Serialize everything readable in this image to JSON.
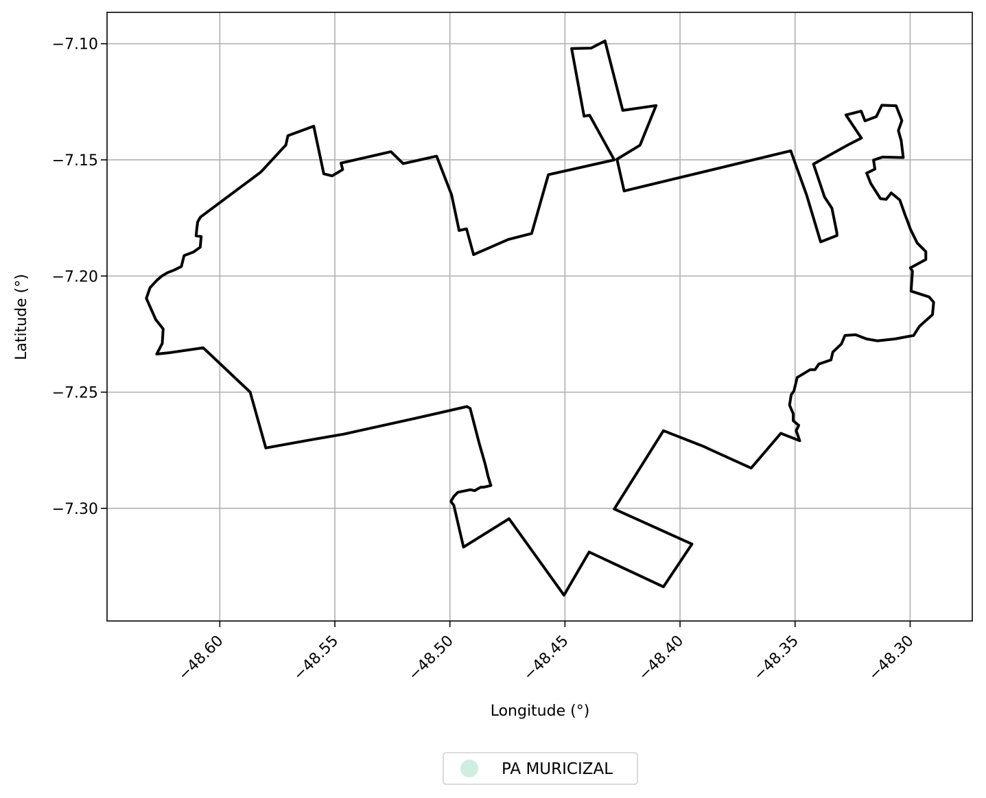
{
  "chart_data": {
    "type": "map",
    "xlabel": "Longitude (°)",
    "ylabel": "Latitude (°)",
    "xlim": [
      -48.649,
      -48.273
    ],
    "ylim": [
      -7.3485,
      -7.0865
    ],
    "xticks": [
      -48.6,
      -48.55,
      -48.5,
      -48.45,
      -48.4,
      -48.35,
      -48.3
    ],
    "xtick_labels": [
      "−48.60",
      "−48.55",
      "−48.50",
      "−48.45",
      "−48.40",
      "−48.35",
      "−48.30"
    ],
    "yticks": [
      -7.1,
      -7.15,
      -7.2,
      -7.25,
      -7.3
    ],
    "ytick_labels": [
      "−7.10",
      "−7.15",
      "−7.20",
      "−7.25",
      "−7.30"
    ],
    "grid": true,
    "legend": {
      "placement": "bottom-center",
      "entries": [
        {
          "label": "PA MURICIZAL",
          "color": "#cfeee0"
        }
      ]
    },
    "outline_color": "#000000",
    "boundary": [
      [
        -48.4504,
        -7.3374
      ],
      [
        -48.4395,
        -7.3188
      ],
      [
        -48.4072,
        -7.3338
      ],
      [
        -48.3948,
        -7.3154
      ],
      [
        -48.4286,
        -7.3003
      ],
      [
        -48.4072,
        -7.2666
      ],
      [
        -48.3897,
        -7.2734
      ],
      [
        -48.386,
        -7.2751
      ],
      [
        -48.3691,
        -7.2827
      ],
      [
        -48.3562,
        -7.2677
      ],
      [
        -48.348,
        -7.2709
      ],
      [
        -48.3495,
        -7.2666
      ],
      [
        -48.3484,
        -7.2643
      ],
      [
        -48.3508,
        -7.2623
      ],
      [
        -48.3508,
        -7.2593
      ],
      [
        -48.3524,
        -7.2556
      ],
      [
        -48.3517,
        -7.2511
      ],
      [
        -48.3505,
        -7.2495
      ],
      [
        -48.3491,
        -7.2437
      ],
      [
        -48.3434,
        -7.2403
      ],
      [
        -48.3413,
        -7.2403
      ],
      [
        -48.3397,
        -7.2379
      ],
      [
        -48.3344,
        -7.2361
      ],
      [
        -48.3336,
        -7.2327
      ],
      [
        -48.3299,
        -7.2293
      ],
      [
        -48.3283,
        -7.2256
      ],
      [
        -48.3237,
        -7.2253
      ],
      [
        -48.3189,
        -7.2271
      ],
      [
        -48.3143,
        -7.2279
      ],
      [
        -48.3067,
        -7.2271
      ],
      [
        -48.2985,
        -7.2256
      ],
      [
        -48.296,
        -7.2217
      ],
      [
        -48.2903,
        -7.2166
      ],
      [
        -48.2898,
        -7.2113
      ],
      [
        -48.2918,
        -7.209
      ],
      [
        -48.2996,
        -7.2065
      ],
      [
        -48.299,
        -7.1979
      ],
      [
        -48.2999,
        -7.1965
      ],
      [
        -48.2932,
        -7.1929
      ],
      [
        -48.2932,
        -7.1895
      ],
      [
        -48.2969,
        -7.1858
      ],
      [
        -48.2999,
        -7.1798
      ],
      [
        -48.3012,
        -7.1762
      ],
      [
        -48.3021,
        -7.174
      ],
      [
        -48.3045,
        -7.1673
      ],
      [
        -48.3082,
        -7.1642
      ],
      [
        -48.3104,
        -7.167
      ],
      [
        -48.3129,
        -7.1667
      ],
      [
        -48.3171,
        -7.1602
      ],
      [
        -48.3189,
        -7.1557
      ],
      [
        -48.3153,
        -7.154
      ],
      [
        -48.3159,
        -7.1501
      ],
      [
        -48.312,
        -7.1488
      ],
      [
        -48.303,
        -7.149
      ],
      [
        -48.3039,
        -7.1417
      ],
      [
        -48.3051,
        -7.1374
      ],
      [
        -48.3036,
        -7.1331
      ],
      [
        -48.3061,
        -7.1267
      ],
      [
        -48.3123,
        -7.1265
      ],
      [
        -48.3147,
        -7.1314
      ],
      [
        -48.3196,
        -7.1332
      ],
      [
        -48.3213,
        -7.129
      ],
      [
        -48.3279,
        -7.1307
      ],
      [
        -48.3212,
        -7.1406
      ],
      [
        -48.3269,
        -7.1435
      ],
      [
        -48.342,
        -7.1518
      ],
      [
        -48.3372,
        -7.166
      ],
      [
        -48.334,
        -7.1708
      ],
      [
        -48.3319,
        -7.1811
      ],
      [
        -48.3318,
        -7.1826
      ],
      [
        -48.3389,
        -7.1853
      ],
      [
        -48.345,
        -7.1651
      ],
      [
        -48.3519,
        -7.1461
      ],
      [
        -48.4243,
        -7.1634
      ],
      [
        -48.4274,
        -7.1497
      ],
      [
        -48.4174,
        -7.1437
      ],
      [
        -48.4104,
        -7.1266
      ],
      [
        -48.4249,
        -7.1287
      ],
      [
        -48.4326,
        -7.0988
      ],
      [
        -48.4386,
        -7.1019
      ],
      [
        -48.4471,
        -7.1021
      ],
      [
        -48.4417,
        -7.1312
      ],
      [
        -48.4393,
        -7.1308
      ],
      [
        -48.4286,
        -7.15
      ],
      [
        -48.4572,
        -7.1564
      ],
      [
        -48.4645,
        -7.1817
      ],
      [
        -48.4747,
        -7.1843
      ],
      [
        -48.4897,
        -7.1908
      ],
      [
        -48.4928,
        -7.1797
      ],
      [
        -48.496,
        -7.1804
      ],
      [
        -48.4993,
        -7.165
      ],
      [
        -48.5058,
        -7.1484
      ],
      [
        -48.5203,
        -7.1516
      ],
      [
        -48.5256,
        -7.1465
      ],
      [
        -48.5473,
        -7.1514
      ],
      [
        -48.5466,
        -7.1542
      ],
      [
        -48.5512,
        -7.1569
      ],
      [
        -48.5548,
        -7.156
      ],
      [
        -48.5592,
        -7.1355
      ],
      [
        -48.5704,
        -7.1396
      ],
      [
        -48.5713,
        -7.1436
      ],
      [
        -48.5822,
        -7.1553
      ],
      [
        -48.6084,
        -7.1746
      ],
      [
        -48.6096,
        -7.1767
      ],
      [
        -48.61,
        -7.1797
      ],
      [
        -48.6103,
        -7.1827
      ],
      [
        -48.6081,
        -7.183
      ],
      [
        -48.6085,
        -7.1876
      ],
      [
        -48.6115,
        -7.1897
      ],
      [
        -48.6155,
        -7.1912
      ],
      [
        -48.6167,
        -7.1959
      ],
      [
        -48.62,
        -7.1975
      ],
      [
        -48.6228,
        -7.1986
      ],
      [
        -48.6252,
        -7.2
      ],
      [
        -48.6273,
        -7.2018
      ],
      [
        -48.6303,
        -7.205
      ],
      [
        -48.6319,
        -7.2096
      ],
      [
        -48.6278,
        -7.2188
      ],
      [
        -48.6246,
        -7.2228
      ],
      [
        -48.625,
        -7.229
      ],
      [
        -48.6274,
        -7.2336
      ],
      [
        -48.6218,
        -7.233
      ],
      [
        -48.6072,
        -7.2309
      ],
      [
        -48.5868,
        -7.25
      ],
      [
        -48.58,
        -7.274
      ],
      [
        -48.561,
        -7.2706
      ],
      [
        -48.5463,
        -7.2681
      ],
      [
        -48.5156,
        -7.2614
      ],
      [
        -48.4926,
        -7.2562
      ],
      [
        -48.4912,
        -7.257
      ],
      [
        -48.4873,
        -7.2719
      ],
      [
        -48.4847,
        -7.2809
      ],
      [
        -48.4834,
        -7.2863
      ],
      [
        -48.4822,
        -7.2902
      ],
      [
        -48.4848,
        -7.2908
      ],
      [
        -48.4867,
        -7.291
      ],
      [
        -48.4893,
        -7.2924
      ],
      [
        -48.4911,
        -7.292
      ],
      [
        -48.4965,
        -7.2931
      ],
      [
        -48.4983,
        -7.2949
      ],
      [
        -48.4995,
        -7.2969
      ],
      [
        -48.4993,
        -7.2975
      ],
      [
        -48.4983,
        -7.2987
      ],
      [
        -48.4941,
        -7.3167
      ],
      [
        -48.4743,
        -7.3045
      ],
      [
        -48.4504,
        -7.3374
      ]
    ]
  }
}
